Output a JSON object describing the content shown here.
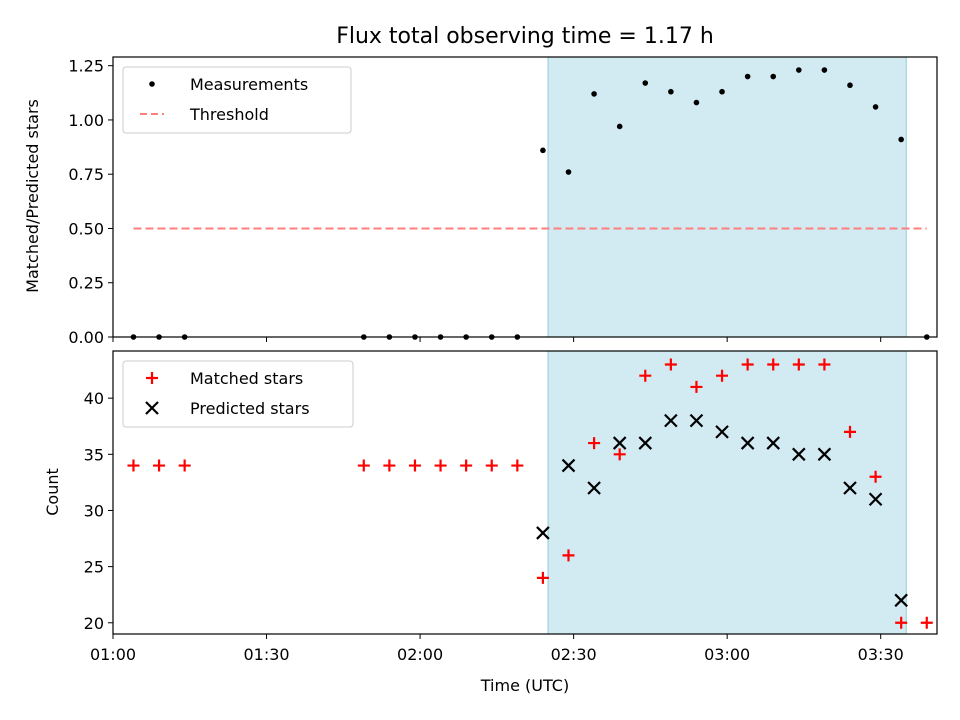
{
  "chart_data": {
    "type": "scatter",
    "title": "Flux total observing time = 1.17 h",
    "xlabel": "Time (UTC)",
    "x_tick_labels": [
      "01:00",
      "01:30",
      "02:00",
      "02:30",
      "03:00",
      "03:30"
    ],
    "x_tick_values": [
      60,
      90,
      120,
      150,
      180,
      210
    ],
    "xlim": [
      60,
      221
    ],
    "highlight_span": {
      "x_start": 145,
      "x_end": 215,
      "color": "#add8e6"
    },
    "panels": [
      {
        "ylabel": "Matched/Predicted stars",
        "ylim": [
          0,
          1.29
        ],
        "y_ticks": [
          "0.00",
          "0.25",
          "0.50",
          "0.75",
          "1.00",
          "1.25"
        ],
        "y_tick_values": [
          0,
          0.25,
          0.5,
          0.75,
          1.0,
          1.25
        ],
        "legend": {
          "location": "upper left",
          "entries": [
            "Measurements",
            "Threshold"
          ]
        },
        "series": [
          {
            "name": "Measurements",
            "marker": "dot",
            "color": "#000000",
            "x": [
              64,
              69,
              74,
              109,
              114,
              119,
              124,
              129,
              134,
              139,
              144,
              149,
              154,
              159,
              164,
              169,
              174,
              179,
              184,
              189,
              194,
              199,
              204,
              209,
              214,
              219
            ],
            "y": [
              0,
              0,
              0,
              0,
              0,
              0,
              0,
              0,
              0,
              0,
              0.86,
              0.76,
              1.12,
              0.97,
              1.17,
              1.13,
              1.08,
              1.13,
              1.2,
              1.2,
              1.23,
              1.23,
              1.16,
              1.06,
              0.91,
              0
            ]
          },
          {
            "name": "Threshold",
            "marker": "dashed-line",
            "color": "#ff7f7f",
            "x": [
              64,
              219
            ],
            "y": [
              0.5,
              0.5
            ]
          }
        ]
      },
      {
        "ylabel": "Count",
        "ylim": [
          19,
          44.2
        ],
        "y_ticks": [
          "20",
          "25",
          "30",
          "35",
          "40"
        ],
        "y_tick_values": [
          20,
          25,
          30,
          35,
          40
        ],
        "legend": {
          "location": "upper left",
          "entries": [
            "Matched stars",
            "Predicted stars"
          ]
        },
        "series": [
          {
            "name": "Matched stars",
            "marker": "plus",
            "color": "#ff0000",
            "x": [
              64,
              69,
              74,
              109,
              114,
              119,
              124,
              129,
              134,
              139,
              144,
              149,
              154,
              159,
              164,
              169,
              174,
              179,
              184,
              189,
              194,
              199,
              204,
              209,
              214,
              219
            ],
            "y": [
              34,
              34,
              34,
              34,
              34,
              34,
              34,
              34,
              34,
              34,
              24,
              26,
              36,
              35,
              42,
              43,
              41,
              42,
              43,
              43,
              43,
              43,
              37,
              33,
              20,
              20
            ]
          },
          {
            "name": "Predicted stars",
            "marker": "x",
            "color": "#000000",
            "x": [
              144,
              149,
              154,
              159,
              164,
              169,
              174,
              179,
              184,
              189,
              194,
              199,
              204,
              209,
              214
            ],
            "y": [
              28,
              34,
              32,
              36,
              36,
              38,
              38,
              37,
              36,
              36,
              35,
              35,
              32,
              31,
              22
            ]
          }
        ]
      }
    ]
  }
}
